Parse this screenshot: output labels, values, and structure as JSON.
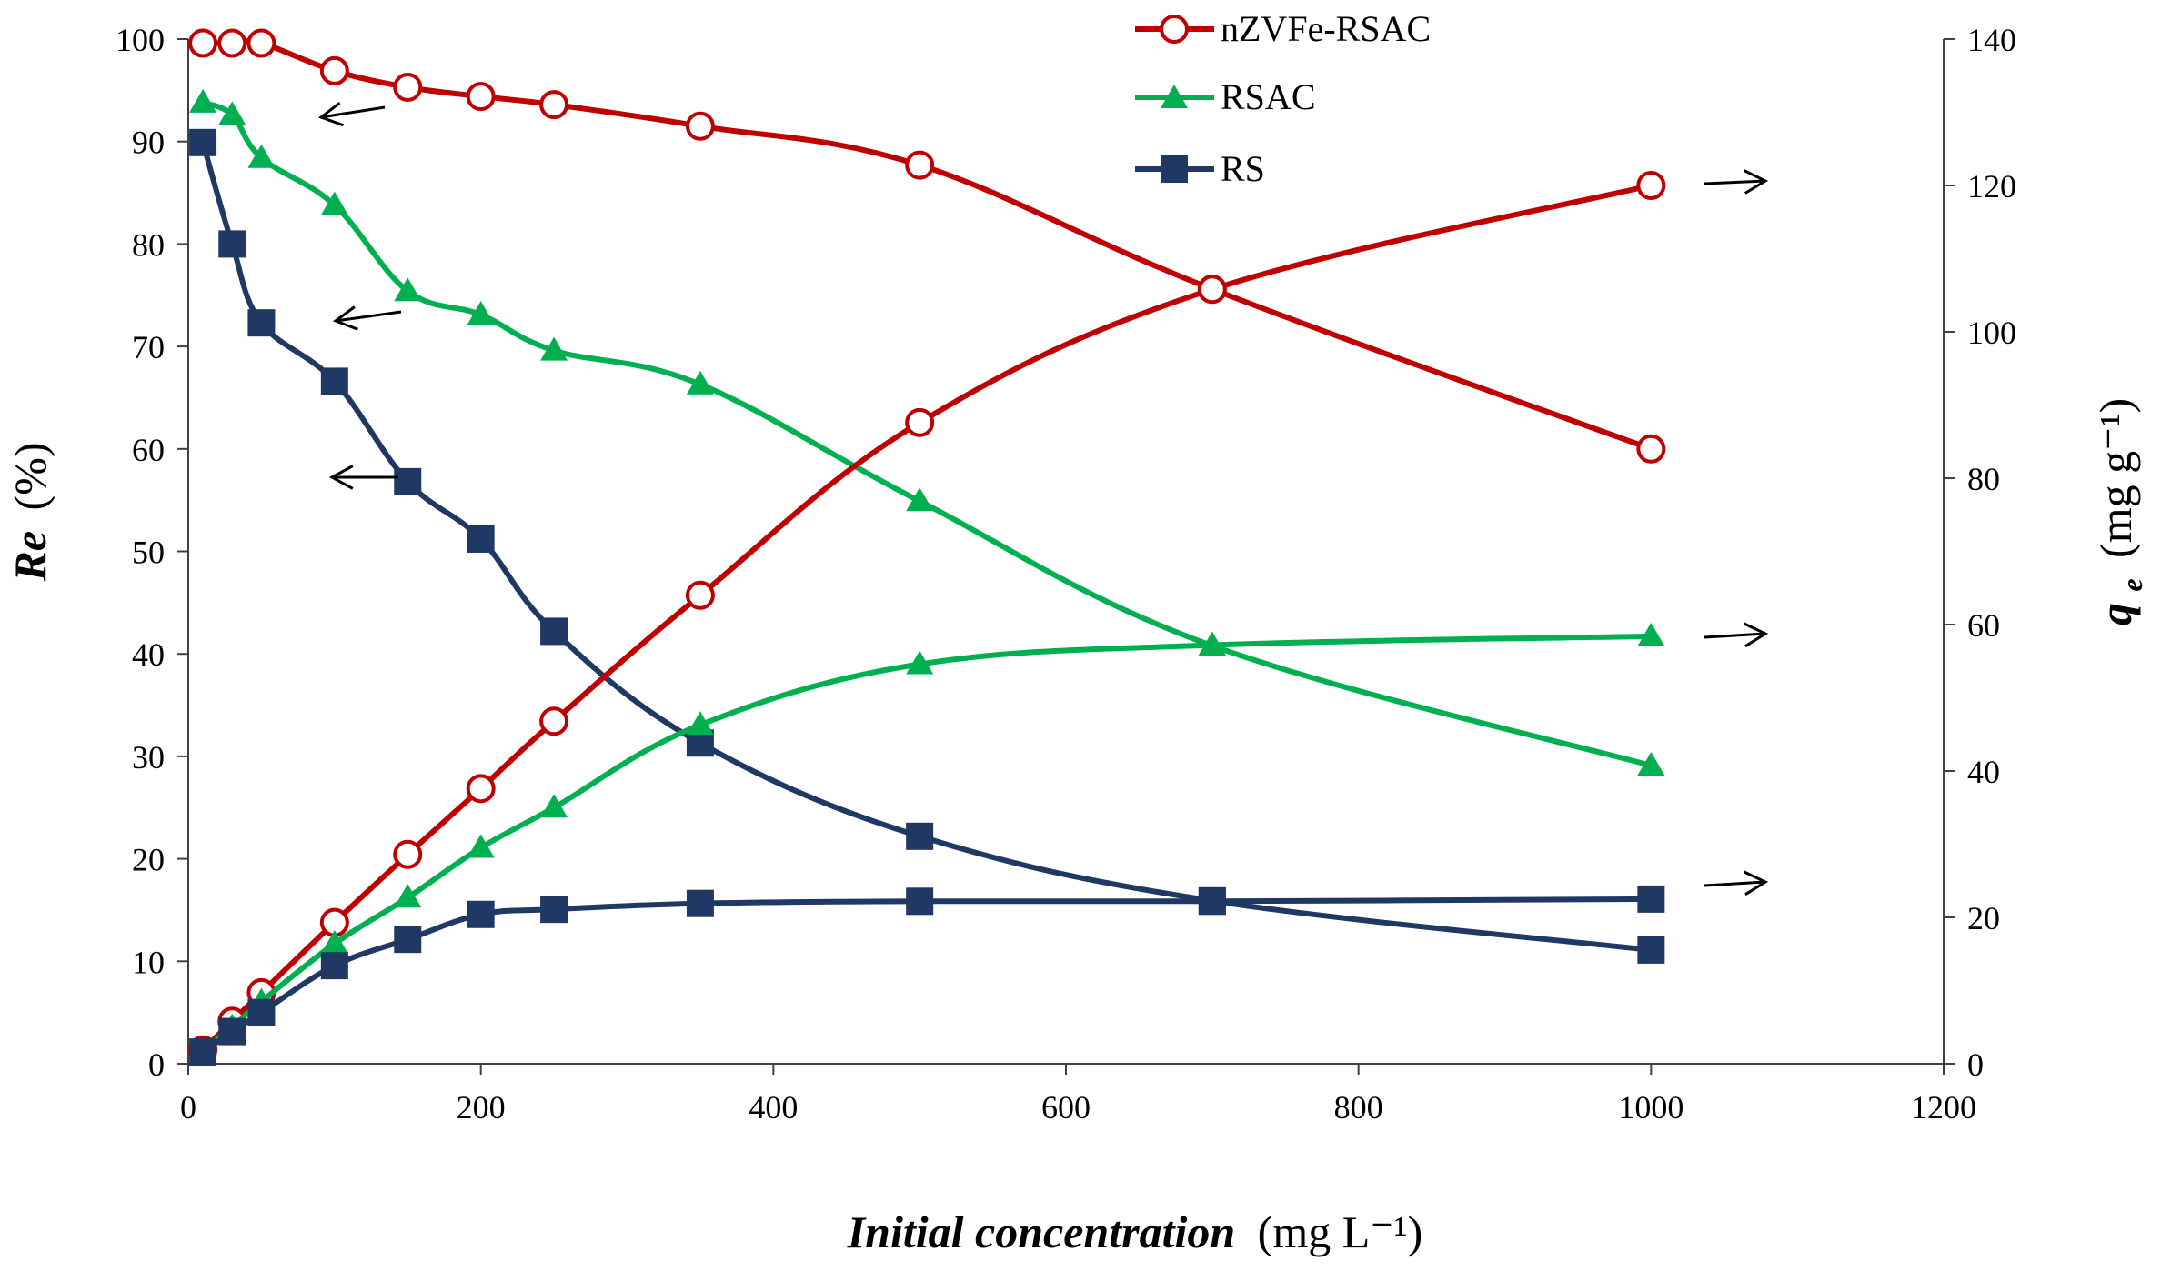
{
  "chart_data": {
    "type": "line",
    "title": "",
    "xlabel": "Initial concentration (mg L⁻¹)",
    "xlabel_main": "Initial concentration",
    "xlabel_unit": "(mg L⁻¹)",
    "ylabel_left": "Re (%)",
    "ylabel_left_main": "Re",
    "ylabel_left_unit": "(%)",
    "ylabel_right": "qe (mg g⁻¹)",
    "ylabel_right_main": "q",
    "ylabel_right_sub": "e",
    "ylabel_right_unit": "(mg g⁻¹)",
    "xlim": [
      0,
      1200
    ],
    "ylim_left": [
      0,
      100
    ],
    "ylim_right": [
      0,
      140
    ],
    "x_ticks": [
      0,
      200,
      400,
      600,
      800,
      1000,
      1200
    ],
    "y_left_ticks": [
      0,
      10,
      20,
      30,
      40,
      50,
      60,
      70,
      80,
      90,
      100
    ],
    "y_right_ticks": [
      0,
      20,
      40,
      60,
      80,
      100,
      120,
      140
    ],
    "grid": false,
    "legend_position": "top-center",
    "x": [
      10,
      30,
      50,
      100,
      150,
      200,
      250,
      350,
      500,
      700,
      1000
    ],
    "series": [
      {
        "name": "nZVFe-RSAC",
        "quantity": "Re",
        "axis": "left",
        "color": "#C00000",
        "marker": "open-circle",
        "legend": true,
        "values": [
          99.6,
          99.6,
          99.6,
          96.9,
          95.3,
          94.4,
          93.6,
          91.5,
          87.7,
          75.6,
          60.0
        ]
      },
      {
        "name": "RSAC",
        "quantity": "Re",
        "axis": "left",
        "color": "#00B050",
        "marker": "triangle",
        "legend": true,
        "values": [
          93.8,
          92.6,
          88.4,
          83.8,
          75.4,
          73.1,
          69.6,
          66.3,
          54.9,
          40.8,
          29.1
        ]
      },
      {
        "name": "RS",
        "quantity": "Re",
        "axis": "left",
        "color": "#1F3864",
        "marker": "square",
        "legend": true,
        "values": [
          89.9,
          80.0,
          72.3,
          66.6,
          56.8,
          51.2,
          42.2,
          31.3,
          22.2,
          15.9,
          11.1
        ]
      },
      {
        "name": "nZVFe-RSAC",
        "quantity": "qe",
        "axis": "right",
        "color": "#C00000",
        "marker": "open-circle",
        "legend": false,
        "values": [
          1.9,
          5.8,
          9.7,
          19.3,
          28.6,
          37.6,
          46.8,
          64.0,
          87.6,
          105.8,
          120.0
        ]
      },
      {
        "name": "RSAC",
        "quantity": "qe",
        "axis": "right",
        "color": "#00B050",
        "marker": "triangle",
        "legend": false,
        "values": [
          1.7,
          5.0,
          8.5,
          16.4,
          22.7,
          29.5,
          35.0,
          46.3,
          54.6,
          57.2,
          58.4
        ]
      },
      {
        "name": "RS",
        "quantity": "qe",
        "axis": "right",
        "color": "#1F3864",
        "marker": "square",
        "legend": false,
        "values": [
          1.6,
          4.4,
          7.0,
          13.4,
          17.0,
          20.4,
          21.1,
          21.9,
          22.2,
          22.2,
          22.5
        ]
      }
    ],
    "annotations": [
      {
        "type": "arrow",
        "points_to": "left axis",
        "series": "nZVFe-RSAC Re"
      },
      {
        "type": "arrow",
        "points_to": "left axis",
        "series": "RSAC Re"
      },
      {
        "type": "arrow",
        "points_to": "left axis",
        "series": "RS Re"
      },
      {
        "type": "arrow",
        "points_to": "right axis",
        "series": "nZVFe-RSAC qe"
      },
      {
        "type": "arrow",
        "points_to": "right axis",
        "series": "RSAC qe"
      },
      {
        "type": "arrow",
        "points_to": "right axis",
        "series": "RS qe"
      }
    ]
  }
}
